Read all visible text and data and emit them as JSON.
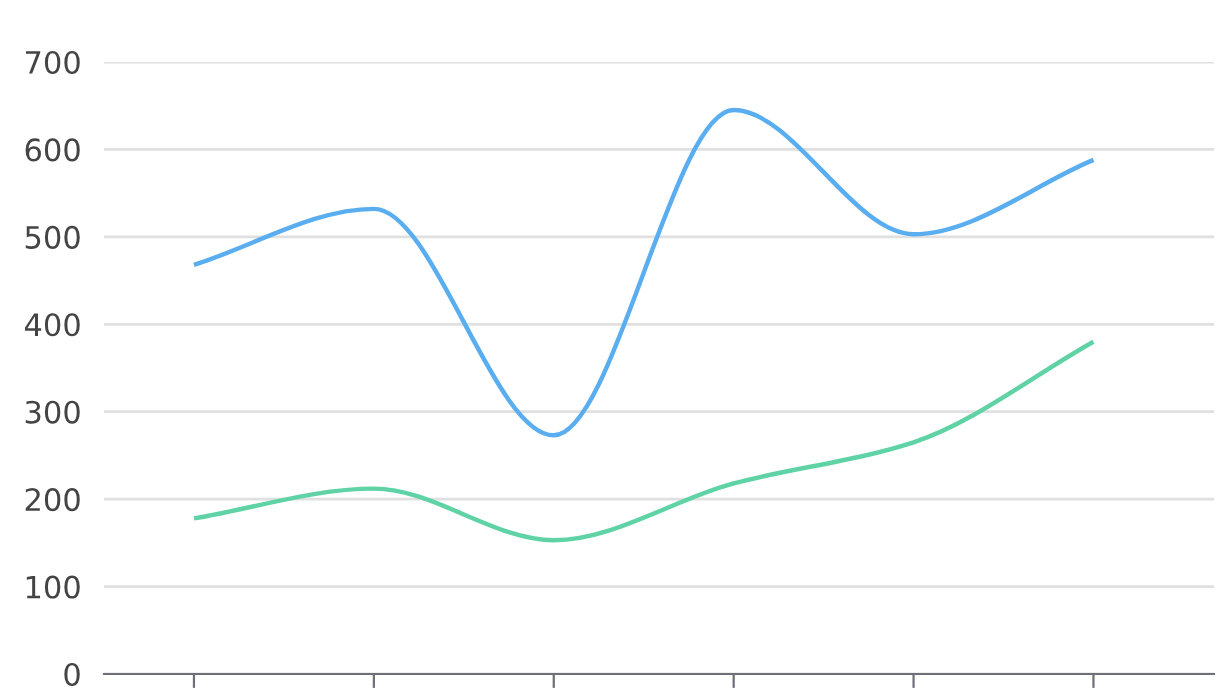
{
  "chart_data": {
    "type": "line",
    "categories": [
      null,
      null,
      null,
      null,
      null,
      null
    ],
    "series": [
      {
        "color": "#5aaef0",
        "values": [
          468,
          532,
          273,
          645,
          503,
          588
        ]
      },
      {
        "color": "#5fd3a5",
        "values": [
          178,
          212,
          153,
          218,
          265,
          380
        ]
      }
    ],
    "ylim": [
      0,
      700
    ],
    "yticks": [
      0,
      100,
      200,
      300,
      400,
      500,
      600,
      700
    ],
    "grid": "y",
    "marker": "none",
    "line_style": "solid"
  }
}
